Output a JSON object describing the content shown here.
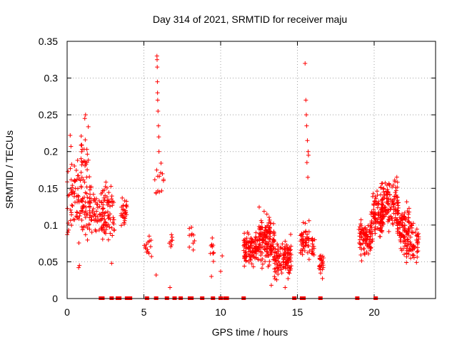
{
  "chart_data": {
    "type": "scatter",
    "title": "Day 314 of 2021, SRMTID for receiver maju",
    "xlabel": "GPS time / hours",
    "ylabel": "SRMTID / TECUs",
    "xlim": [
      0,
      24
    ],
    "ylim": [
      0,
      0.35
    ],
    "x_ticks": [
      0,
      5,
      10,
      15,
      20
    ],
    "x_tick_labels": [
      "0",
      "5",
      "10",
      "15",
      "20"
    ],
    "y_ticks": [
      0,
      0.05,
      0.1,
      0.15,
      0.2,
      0.25,
      0.3,
      0.35
    ],
    "y_tick_labels": [
      "0",
      "0.05",
      "0.1",
      "0.15",
      "0.2",
      "0.25",
      "0.3",
      "0.35"
    ],
    "grid": true,
    "marker": "+",
    "color": "#ff0000",
    "seed": 314,
    "clusters": [
      {
        "x": [
          0.0,
          1.6
        ],
        "y": [
          0.06,
          0.2
        ],
        "n": 130
      },
      {
        "x": [
          0.9,
          1.4
        ],
        "y": [
          0.15,
          0.255
        ],
        "n": 22
      },
      {
        "x": [
          1.6,
          2.4
        ],
        "y": [
          0.07,
          0.15
        ],
        "n": 45
      },
      {
        "x": [
          2.2,
          3.1
        ],
        "y": [
          0.05,
          0.17
        ],
        "n": 70
      },
      {
        "x": [
          3.5,
          3.9
        ],
        "y": [
          0.09,
          0.145
        ],
        "n": 30
      },
      {
        "x": [
          5.0,
          5.5
        ],
        "y": [
          0.03,
          0.105
        ],
        "n": 14
      },
      {
        "x": [
          5.7,
          6.3
        ],
        "y": [
          0.12,
          0.2
        ],
        "n": 14
      },
      {
        "x": [
          6.5,
          6.9
        ],
        "y": [
          0.06,
          0.1
        ],
        "n": 8
      },
      {
        "x": [
          7.9,
          8.3
        ],
        "y": [
          0.06,
          0.11
        ],
        "n": 10
      },
      {
        "x": [
          9.3,
          9.6
        ],
        "y": [
          0.03,
          0.105
        ],
        "n": 10
      },
      {
        "x": [
          11.5,
          12.5
        ],
        "y": [
          0.035,
          0.1
        ],
        "n": 110
      },
      {
        "x": [
          12.5,
          13.5
        ],
        "y": [
          0.025,
          0.13
        ],
        "n": 140
      },
      {
        "x": [
          13.5,
          14.6
        ],
        "y": [
          0.02,
          0.09
        ],
        "n": 120
      },
      {
        "x": [
          15.2,
          15.8
        ],
        "y": [
          0.04,
          0.12
        ],
        "n": 50
      },
      {
        "x": [
          15.9,
          16.2
        ],
        "y": [
          0.04,
          0.1
        ],
        "n": 15
      },
      {
        "x": [
          16.4,
          16.7
        ],
        "y": [
          0.02,
          0.075
        ],
        "n": 25
      },
      {
        "x": [
          19.0,
          19.9
        ],
        "y": [
          0.045,
          0.12
        ],
        "n": 90
      },
      {
        "x": [
          19.8,
          20.6
        ],
        "y": [
          0.07,
          0.155
        ],
        "n": 90
      },
      {
        "x": [
          20.4,
          21.6
        ],
        "y": [
          0.08,
          0.175
        ],
        "n": 130
      },
      {
        "x": [
          21.5,
          22.3
        ],
        "y": [
          0.05,
          0.145
        ],
        "n": 90
      },
      {
        "x": [
          22.1,
          22.9
        ],
        "y": [
          0.035,
          0.12
        ],
        "n": 70
      }
    ],
    "points": [
      {
        "x": 5.85,
        "y": 0.33
      },
      {
        "x": 5.86,
        "y": 0.325
      },
      {
        "x": 5.87,
        "y": 0.315
      },
      {
        "x": 5.88,
        "y": 0.295
      },
      {
        "x": 5.89,
        "y": 0.28
      },
      {
        "x": 5.9,
        "y": 0.27
      },
      {
        "x": 5.92,
        "y": 0.255
      },
      {
        "x": 5.95,
        "y": 0.235
      },
      {
        "x": 5.97,
        "y": 0.22
      },
      {
        "x": 5.98,
        "y": 0.2
      },
      {
        "x": 5.8,
        "y": 0.032
      },
      {
        "x": 6.7,
        "y": 0.015
      },
      {
        "x": 10.1,
        "y": 0.058
      },
      {
        "x": 10.0,
        "y": 0.037
      },
      {
        "x": 9.4,
        "y": 0.03
      },
      {
        "x": 15.5,
        "y": 0.32
      },
      {
        "x": 15.55,
        "y": 0.27
      },
      {
        "x": 15.58,
        "y": 0.25
      },
      {
        "x": 15.6,
        "y": 0.235
      },
      {
        "x": 15.65,
        "y": 0.215
      },
      {
        "x": 15.7,
        "y": 0.2
      },
      {
        "x": 15.72,
        "y": 0.195
      },
      {
        "x": 15.62,
        "y": 0.185
      },
      {
        "x": 15.68,
        "y": 0.165
      },
      {
        "x": 1.2,
        "y": 0.25
      },
      {
        "x": 1.15,
        "y": 0.245
      },
      {
        "x": 0.2,
        "y": 0.222
      },
      {
        "x": 0.25,
        "y": 0.207
      },
      {
        "x": 0.8,
        "y": 0.045
      },
      {
        "x": 0.75,
        "y": 0.042
      },
      {
        "x": 2.9,
        "y": 0.048
      },
      {
        "x": 13.3,
        "y": 0.018
      },
      {
        "x": 14.2,
        "y": 0.015
      }
    ],
    "zero_x": [
      2.2,
      2.3,
      2.9,
      3.3,
      3.4,
      3.9,
      4.1,
      5.2,
      5.8,
      6.5,
      7.0,
      7.4,
      8.0,
      8.1,
      8.8,
      9.5,
      10.0,
      10.3,
      10.4,
      11.5,
      14.8,
      15.3,
      15.4,
      16.5,
      18.9,
      20.1
    ]
  }
}
